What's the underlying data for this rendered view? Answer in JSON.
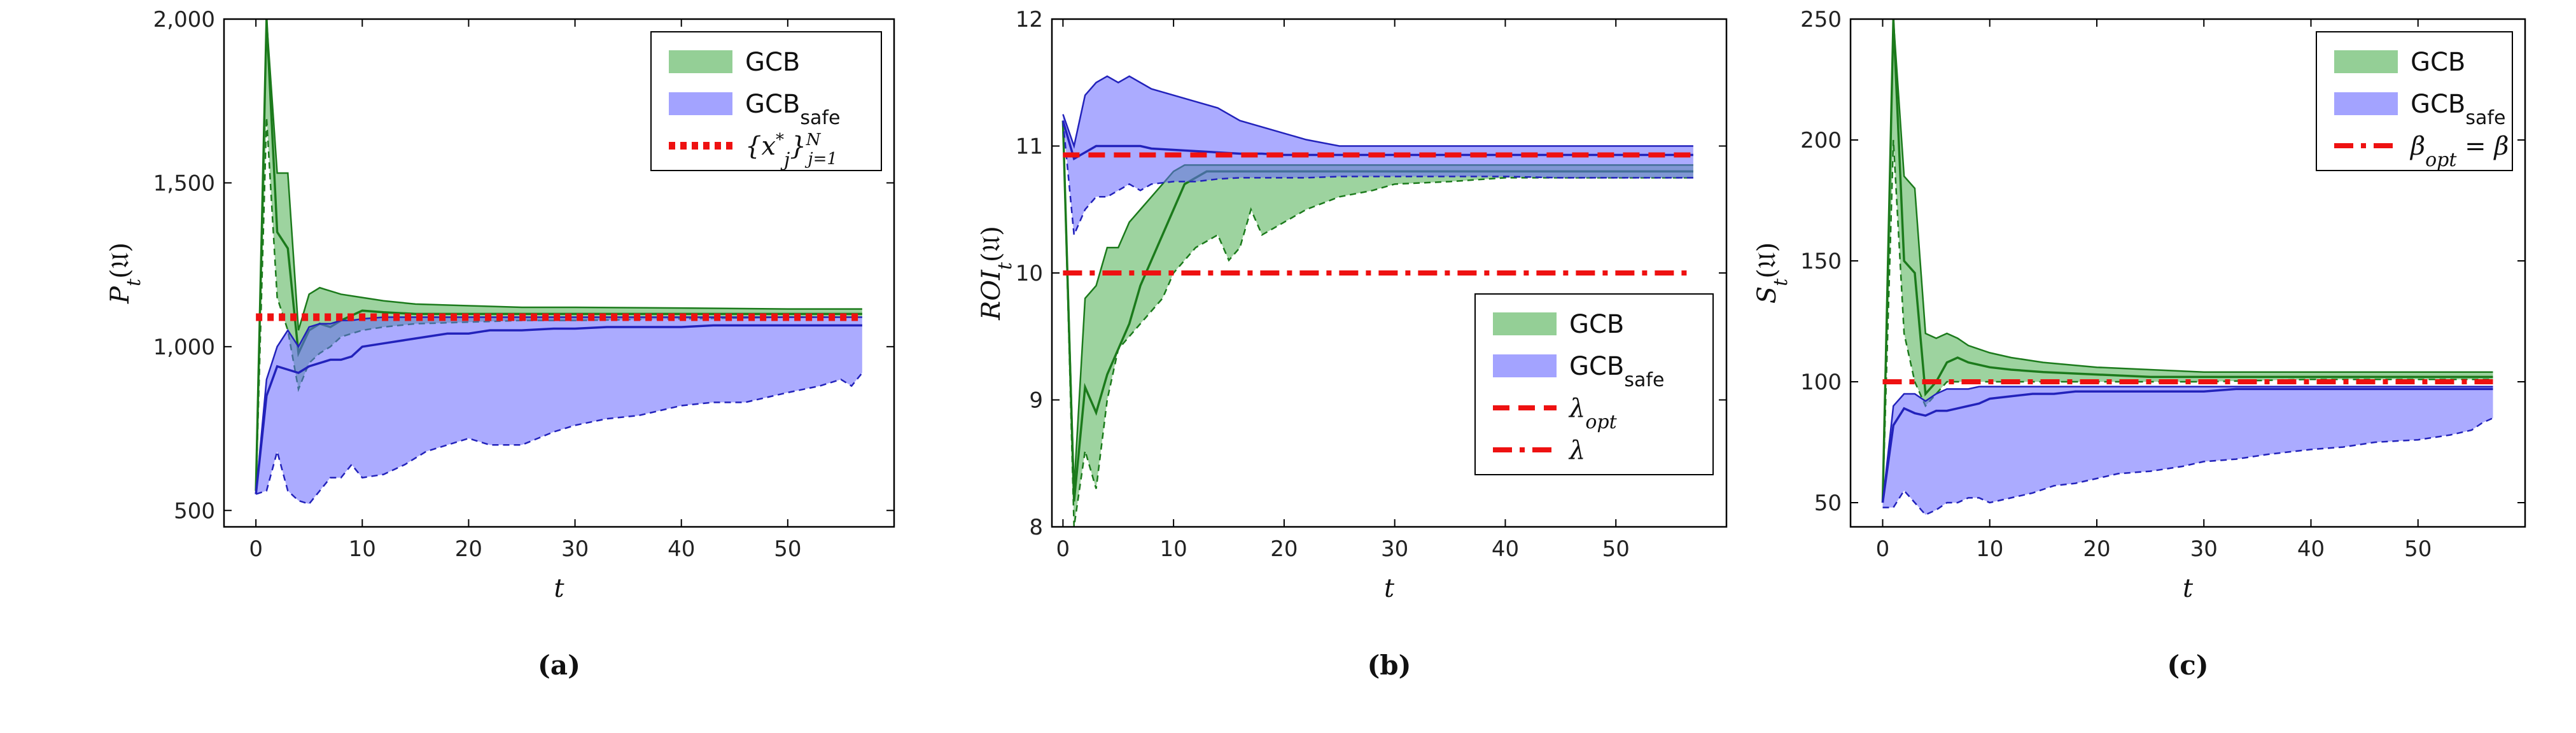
{
  "chart_data": [
    {
      "type": "area",
      "caption": "(a)",
      "xlabel": "t",
      "ylabel": "P_t(𝔘)",
      "xlim": [
        -3,
        60
      ],
      "ylim": [
        450,
        2000
      ],
      "xticks": [
        0,
        10,
        20,
        30,
        40,
        50
      ],
      "yticks": [
        500,
        1000,
        1500,
        2000
      ],
      "ytick_labels": [
        "500",
        "1,000",
        "1,500",
        "2,000"
      ],
      "legend_position": "top-right",
      "grid": false,
      "series": [
        {
          "name": "GCB",
          "kind": "band",
          "color": "#4caf50",
          "x": [
            0,
            1,
            2,
            3,
            4,
            5,
            6,
            7,
            8,
            10,
            12,
            15,
            20,
            25,
            30,
            40,
            50,
            57
          ],
          "upper": [
            560,
            2000,
            1530,
            1530,
            1050,
            1160,
            1180,
            1170,
            1160,
            1150,
            1140,
            1130,
            1125,
            1120,
            1120,
            1118,
            1115,
            1115
          ],
          "mean": [
            560,
            2000,
            1350,
            1300,
            980,
            1050,
            1070,
            1060,
            1080,
            1110,
            1105,
            1100,
            1100,
            1100,
            1100,
            1100,
            1100,
            1100
          ],
          "lower": [
            550,
            1700,
            1150,
            1050,
            870,
            950,
            980,
            1000,
            1030,
            1050,
            1060,
            1070,
            1075,
            1080,
            1080,
            1085,
            1090,
            1090
          ]
        },
        {
          "name": "GCB_safe",
          "kind": "band",
          "color": "#6666ff",
          "x": [
            0,
            1,
            2,
            3,
            4,
            5,
            6,
            7,
            8,
            9,
            10,
            12,
            14,
            16,
            18,
            20,
            22,
            25,
            28,
            30,
            33,
            36,
            40,
            43,
            46,
            50,
            53,
            55,
            56,
            57
          ],
          "upper": [
            550,
            900,
            1000,
            1050,
            1000,
            1060,
            1070,
            1070,
            1080,
            1080,
            1085,
            1090,
            1090,
            1090,
            1090,
            1090,
            1090,
            1090,
            1090,
            1090,
            1090,
            1090,
            1090,
            1090,
            1090,
            1090,
            1090,
            1090,
            1090,
            1090
          ],
          "mean": [
            550,
            850,
            940,
            930,
            920,
            940,
            950,
            960,
            960,
            970,
            1000,
            1010,
            1020,
            1030,
            1040,
            1040,
            1050,
            1050,
            1055,
            1055,
            1060,
            1060,
            1060,
            1065,
            1065,
            1065,
            1065,
            1065,
            1065,
            1065
          ],
          "lower": [
            550,
            560,
            680,
            560,
            530,
            520,
            560,
            600,
            600,
            640,
            600,
            610,
            640,
            680,
            700,
            720,
            700,
            700,
            740,
            760,
            780,
            790,
            820,
            830,
            830,
            860,
            880,
            900,
            880,
            920
          ]
        },
        {
          "name": "{x*_j}^N_{j=1}",
          "kind": "hline",
          "color": "#ee1111",
          "y": 1090
        }
      ],
      "legend": [
        {
          "label": "GCB",
          "sub": "",
          "italic": false,
          "style": "patch",
          "color": "#4caf50"
        },
        {
          "label": "GCB",
          "sub": "safe",
          "italic": false,
          "style": "patch",
          "color": "#6666ff"
        },
        {
          "label": "{x",
          "sub": "j",
          "sup": "*",
          "tail": "}",
          "sup2": "N",
          "sub2": "j=1",
          "italic": true,
          "style": "dotted",
          "color": "#ee1111"
        }
      ]
    },
    {
      "type": "area",
      "caption": "(b)",
      "xlabel": "t",
      "ylabel": "ROI_t(𝔘)",
      "xlim": [
        -1,
        60
      ],
      "ylim": [
        8,
        12
      ],
      "xticks": [
        0,
        10,
        20,
        30,
        40,
        50
      ],
      "yticks": [
        8,
        9,
        10,
        11,
        12
      ],
      "ytick_labels": [
        "8",
        "9",
        "10",
        "11",
        "12"
      ],
      "legend_position": "bottom-right",
      "grid": false,
      "series": [
        {
          "name": "GCB",
          "kind": "band",
          "color": "#4caf50",
          "x": [
            0,
            1,
            2,
            3,
            4,
            5,
            6,
            7,
            8,
            9,
            10,
            11,
            12,
            13,
            14,
            15,
            16,
            17,
            18,
            20,
            22,
            25,
            28,
            30,
            35,
            40,
            45,
            50,
            55,
            57
          ],
          "upper": [
            11.2,
            8.3,
            9.8,
            9.9,
            10.2,
            10.2,
            10.4,
            10.5,
            10.6,
            10.7,
            10.8,
            10.85,
            10.85,
            10.85,
            10.85,
            10.85,
            10.85,
            10.85,
            10.85,
            10.85,
            10.85,
            10.85,
            10.85,
            10.85,
            10.85,
            10.85,
            10.85,
            10.85,
            10.85,
            10.85
          ],
          "mean": [
            11.2,
            8.2,
            9.1,
            8.9,
            9.2,
            9.4,
            9.6,
            9.9,
            10.1,
            10.3,
            10.5,
            10.7,
            10.75,
            10.8,
            10.8,
            10.8,
            10.8,
            10.8,
            10.8,
            10.8,
            10.8,
            10.8,
            10.8,
            10.8,
            10.8,
            10.8,
            10.8,
            10.8,
            10.8,
            10.8
          ],
          "lower": [
            11.2,
            8.0,
            8.6,
            8.3,
            9.0,
            9.4,
            9.5,
            9.6,
            9.7,
            9.8,
            10.0,
            10.1,
            10.2,
            10.25,
            10.3,
            10.1,
            10.2,
            10.5,
            10.3,
            10.4,
            10.5,
            10.6,
            10.65,
            10.7,
            10.72,
            10.75,
            10.75,
            10.75,
            10.75,
            10.75
          ]
        },
        {
          "name": "GCB_safe",
          "kind": "band",
          "color": "#6666ff",
          "x": [
            0,
            1,
            2,
            3,
            4,
            5,
            6,
            7,
            8,
            10,
            12,
            14,
            16,
            18,
            20,
            22,
            25,
            28,
            30,
            35,
            40,
            45,
            50,
            55,
            57
          ],
          "upper": [
            11.25,
            11.0,
            11.4,
            11.5,
            11.55,
            11.5,
            11.55,
            11.5,
            11.45,
            11.4,
            11.35,
            11.3,
            11.2,
            11.15,
            11.1,
            11.05,
            11.0,
            11.0,
            11.0,
            11.0,
            11.0,
            11.0,
            11.0,
            11.0,
            11.0
          ],
          "mean": [
            11.2,
            10.9,
            10.95,
            11.0,
            11.0,
            11.0,
            11.0,
            11.0,
            10.98,
            10.97,
            10.96,
            10.95,
            10.94,
            10.94,
            10.93,
            10.93,
            10.93,
            10.93,
            10.93,
            10.93,
            10.93,
            10.93,
            10.93,
            10.93,
            10.93
          ],
          "lower": [
            11.2,
            10.3,
            10.5,
            10.6,
            10.6,
            10.65,
            10.7,
            10.65,
            10.7,
            10.72,
            10.72,
            10.74,
            10.75,
            10.75,
            10.75,
            10.75,
            10.76,
            10.76,
            10.76,
            10.76,
            10.76,
            10.75,
            10.75,
            10.75,
            10.75
          ]
        },
        {
          "name": "λ_opt",
          "kind": "hline",
          "color": "#ee1111",
          "y": 10.93,
          "dash": "dashed"
        },
        {
          "name": "λ",
          "kind": "hline",
          "color": "#ee1111",
          "y": 10.0,
          "dash": "dashdot"
        }
      ],
      "legend": [
        {
          "label": "GCB",
          "sub": "",
          "italic": false,
          "style": "patch",
          "color": "#4caf50"
        },
        {
          "label": "GCB",
          "sub": "safe",
          "italic": false,
          "style": "patch",
          "color": "#6666ff"
        },
        {
          "label": "λ",
          "sub": "opt",
          "italic": true,
          "style": "dashed",
          "color": "#ee1111"
        },
        {
          "label": "λ",
          "sub": "",
          "italic": true,
          "style": "dashdot",
          "color": "#ee1111"
        }
      ]
    },
    {
      "type": "area",
      "caption": "(c)",
      "xlabel": "t",
      "ylabel": "S_t(𝔘)",
      "xlim": [
        -3,
        60
      ],
      "ylim": [
        40,
        250
      ],
      "xticks": [
        0,
        10,
        20,
        30,
        40,
        50
      ],
      "yticks": [
        50,
        100,
        150,
        200,
        250
      ],
      "ytick_labels": [
        "50",
        "100",
        "150",
        "200",
        "250"
      ],
      "legend_position": "top-right",
      "grid": false,
      "series": [
        {
          "name": "GCB",
          "kind": "band",
          "color": "#4caf50",
          "x": [
            0,
            1,
            2,
            3,
            4,
            5,
            6,
            7,
            8,
            10,
            12,
            15,
            20,
            25,
            30,
            40,
            50,
            57
          ],
          "upper": [
            50,
            250,
            185,
            180,
            120,
            118,
            120,
            118,
            115,
            112,
            110,
            108,
            106,
            105,
            104,
            104,
            104,
            104
          ],
          "mean": [
            50,
            250,
            150,
            145,
            95,
            100,
            108,
            110,
            108,
            106,
            105,
            104,
            103,
            102,
            102,
            102,
            102,
            102
          ],
          "lower": [
            50,
            200,
            120,
            100,
            90,
            95,
            100,
            100,
            100,
            100,
            100,
            100,
            100,
            100,
            100,
            101,
            101,
            101
          ]
        },
        {
          "name": "GCB_safe",
          "kind": "band",
          "color": "#6666ff",
          "x": [
            0,
            1,
            2,
            3,
            4,
            5,
            6,
            7,
            8,
            9,
            10,
            12,
            14,
            16,
            18,
            20,
            22,
            25,
            28,
            30,
            33,
            36,
            40,
            43,
            46,
            50,
            53,
            55,
            56,
            57
          ],
          "upper": [
            50,
            90,
            95,
            95,
            92,
            95,
            97,
            97,
            97,
            98,
            98,
            98,
            98,
            98,
            98,
            98,
            98,
            98,
            98,
            98,
            98,
            98,
            98,
            98,
            98,
            98,
            98,
            98,
            98,
            98
          ],
          "mean": [
            50,
            82,
            89,
            87,
            86,
            88,
            88,
            89,
            90,
            91,
            93,
            94,
            95,
            95,
            96,
            96,
            96,
            96,
            96,
            96,
            97,
            97,
            97,
            97,
            97,
            97,
            97,
            97,
            97,
            97
          ],
          "lower": [
            48,
            48,
            55,
            50,
            45,
            47,
            50,
            50,
            52,
            52,
            50,
            52,
            54,
            57,
            58,
            60,
            62,
            63,
            65,
            67,
            68,
            70,
            72,
            73,
            75,
            76,
            78,
            80,
            83,
            85
          ]
        },
        {
          "name": "β_opt = β",
          "kind": "hline",
          "color": "#ee1111",
          "y": 100,
          "dash": "dashdot"
        }
      ],
      "legend": [
        {
          "label": "GCB",
          "sub": "",
          "italic": false,
          "style": "patch",
          "color": "#4caf50"
        },
        {
          "label": "GCB",
          "sub": "safe",
          "italic": false,
          "style": "patch",
          "color": "#6666ff"
        },
        {
          "label": "β",
          "sub": "opt",
          "tail": " = β",
          "italic": true,
          "style": "dashdot",
          "color": "#ee1111"
        }
      ]
    }
  ]
}
